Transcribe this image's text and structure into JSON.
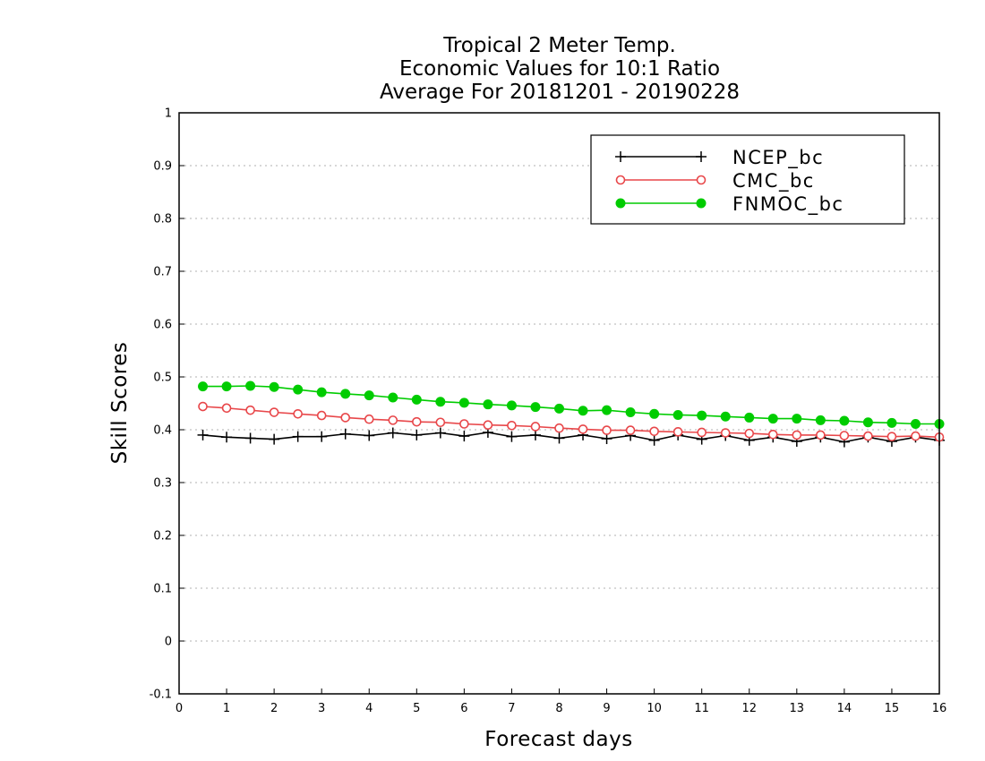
{
  "chart_data": {
    "type": "line",
    "title": [
      "Tropical 2 Meter Temp.",
      "Economic Values for 10:1 Ratio",
      "Average For 20181201 - 20190228"
    ],
    "xlabel": "Forecast days",
    "ylabel": "Skill Scores",
    "xlim": [
      0,
      16
    ],
    "ylim": [
      -0.1,
      1
    ],
    "xticks": [
      "0",
      "1",
      "2",
      "3",
      "4",
      "5",
      "6",
      "7",
      "8",
      "9",
      "10",
      "11",
      "12",
      "13",
      "14",
      "15",
      "16"
    ],
    "yticks": [
      "1",
      "0.9",
      "0.8",
      "0.7",
      "0.6",
      "0.5",
      "0.4",
      "0.3",
      "0.2",
      "0.1",
      "0",
      "-0.1"
    ],
    "grid": true,
    "legend_position": "top-right",
    "x": [
      0.5,
      1,
      1.5,
      2,
      2.5,
      3,
      3.5,
      4,
      4.5,
      5,
      5.5,
      6,
      6.5,
      7,
      7.5,
      8,
      8.5,
      9,
      9.5,
      10,
      10.5,
      11,
      11.5,
      12,
      12.5,
      13,
      13.5,
      14,
      14.5,
      15,
      15.5,
      16
    ],
    "series": [
      {
        "name": "NCEP_bc",
        "color": "#000000",
        "marker": "plus",
        "values": [
          0.39,
          0.386,
          0.384,
          0.382,
          0.387,
          0.387,
          0.392,
          0.389,
          0.394,
          0.39,
          0.394,
          0.388,
          0.395,
          0.387,
          0.39,
          0.384,
          0.39,
          0.383,
          0.389,
          0.38,
          0.39,
          0.382,
          0.389,
          0.38,
          0.386,
          0.378,
          0.386,
          0.377,
          0.386,
          0.378,
          0.386,
          0.38
        ]
      },
      {
        "name": "CMC_bc",
        "color": "#e8474a",
        "marker": "open-circle",
        "values": [
          0.444,
          0.441,
          0.437,
          0.433,
          0.43,
          0.427,
          0.423,
          0.42,
          0.418,
          0.415,
          0.414,
          0.411,
          0.409,
          0.408,
          0.406,
          0.403,
          0.401,
          0.399,
          0.399,
          0.397,
          0.396,
          0.395,
          0.394,
          0.393,
          0.391,
          0.39,
          0.39,
          0.389,
          0.388,
          0.387,
          0.388,
          0.386
        ]
      },
      {
        "name": "FNMOC_bc",
        "color": "#00cc00",
        "marker": "filled-circle",
        "values": [
          0.482,
          0.482,
          0.483,
          0.481,
          0.476,
          0.471,
          0.468,
          0.465,
          0.461,
          0.457,
          0.453,
          0.451,
          0.448,
          0.446,
          0.443,
          0.44,
          0.436,
          0.437,
          0.433,
          0.43,
          0.428,
          0.427,
          0.425,
          0.423,
          0.421,
          0.421,
          0.418,
          0.417,
          0.414,
          0.413,
          0.411,
          0.411
        ]
      }
    ]
  }
}
